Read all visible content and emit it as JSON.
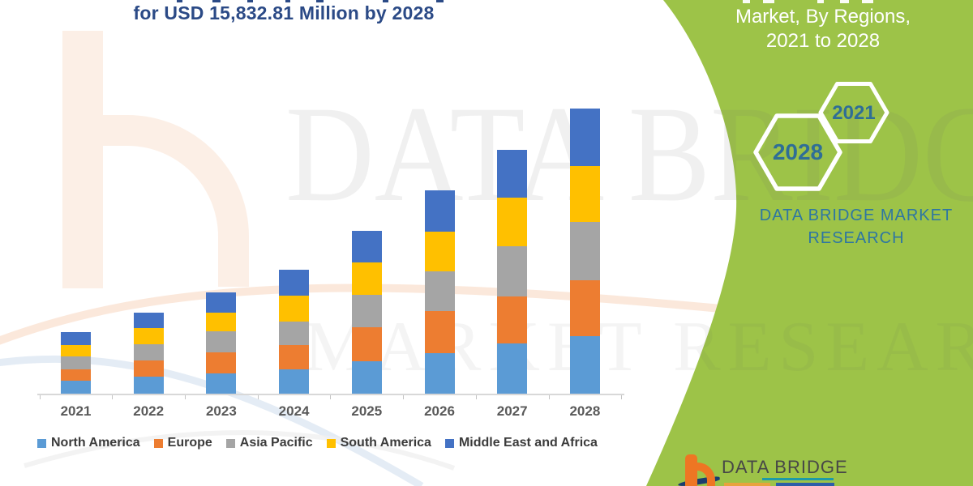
{
  "title": {
    "line2": "for USD 15,832.81 Million by 2028"
  },
  "watermark": {
    "line1": "DATA BRIDGE",
    "line2": "MARKET RESEARCH"
  },
  "side_panel": {
    "panel_color": "#9dc348",
    "title_line1": "Market, By Regions,",
    "title_line2": "2021 to 2028",
    "hexagons": [
      {
        "label": "2028"
      },
      {
        "label": "2021"
      }
    ],
    "brand_line1": "DATA BRIDGE MARKET",
    "brand_line2": "RESEARCH"
  },
  "footer_logo": {
    "brand": "DATA BRIDGE"
  },
  "chart_data": {
    "type": "bar",
    "stacked": true,
    "unit": "USD Million",
    "title": "for USD 15,832.81 Million by 2028",
    "legend_position": "bottom",
    "y_axis_visible": false,
    "grid": false,
    "values_estimated_from_pixels": true,
    "categories": [
      "2021",
      "2022",
      "2023",
      "2024",
      "2025",
      "2026",
      "2027",
      "2028"
    ],
    "series": [
      {
        "name": "North America",
        "color": "#5b9bd5",
        "values": [
          707,
          945,
          1139,
          1351,
          1801,
          2251,
          2778,
          3183
        ]
      },
      {
        "name": "Europe",
        "color": "#ed7d31",
        "values": [
          644,
          900,
          1157,
          1351,
          1909,
          2328,
          2625,
          3120
        ]
      },
      {
        "name": "Asia Pacific",
        "color": "#a5a5a5",
        "values": [
          707,
          900,
          1157,
          1319,
          1769,
          2206,
          2809,
          3260
        ]
      },
      {
        "name": "South America",
        "color": "#ffc000",
        "values": [
          644,
          900,
          1049,
          1427,
          1801,
          2219,
          2670,
          3088
        ]
      },
      {
        "name": "Middle East and Africa",
        "color": "#4472c4",
        "values": [
          720,
          869,
          1139,
          1427,
          1756,
          2283,
          2670,
          3181.81
        ]
      }
    ],
    "totals": [
      3422,
      4514,
      5641,
      6875,
      9036,
      11287,
      13552,
      15832.81
    ]
  }
}
